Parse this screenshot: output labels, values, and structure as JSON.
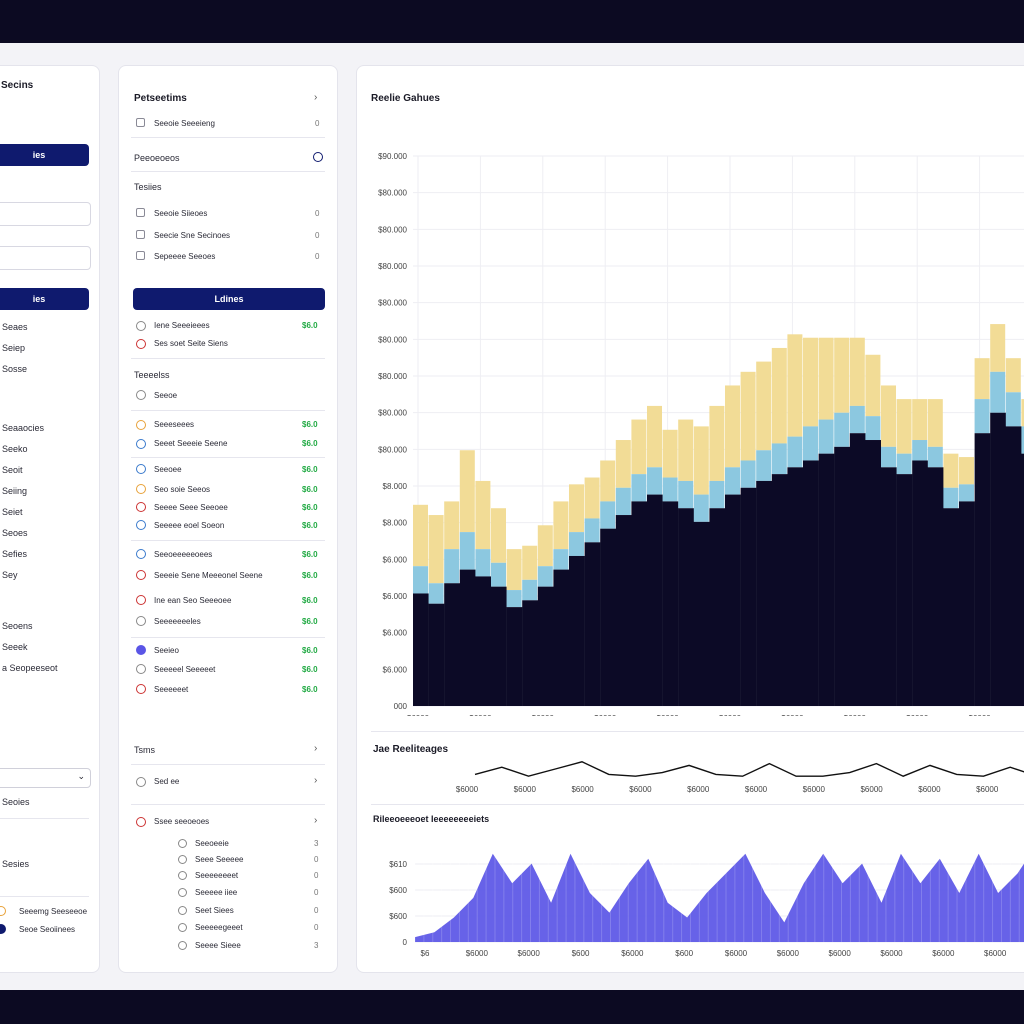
{
  "colors": {
    "accent": "#0f1a6e",
    "ok": "#22aa44",
    "error": "#cc3333",
    "band_top": "#f2dc96",
    "band_mid": "#8cc8e0",
    "band_base": "#0c0a26",
    "purple": "#5a55e6"
  },
  "left": {
    "title": "Secins",
    "btn1": "ies",
    "btn2": "ies",
    "items": [
      "Seaes",
      "Seiep",
      "Sosse"
    ],
    "section2": [
      "Seaaocies",
      "Seeko",
      "Seoit",
      "Seiing",
      "Seiet",
      "Seoes",
      "Sefies",
      "Sey"
    ],
    "section3": [
      "Seoens",
      "Seeek",
      "a Seopeeseot"
    ],
    "dropdown_value": "",
    "footer1": "Seoies",
    "footer2": "Sesies",
    "footer3": [
      "Seeemg Seeseeoe",
      "Seoe Seoiinees"
    ]
  },
  "mid": {
    "title": "Petseetims",
    "row1": "Seeoie Seeeieng",
    "row1_val": "0",
    "section1": "Peeoeoeos",
    "section2": "Tesiies",
    "checks": [
      {
        "label": "Seeoie Siieoes",
        "val": "0"
      },
      {
        "label": "Seecie Sne Secinoes",
        "val": "0"
      },
      {
        "label": "Sepeeee Seeoes",
        "val": "0"
      }
    ],
    "button": "Ldines",
    "list1": [
      {
        "label": "Iene Seeeieees",
        "val": "$6.0"
      },
      {
        "label": "Ses soet Seite Siens",
        "val": "$6.0"
      }
    ],
    "section3": "Teeeelss",
    "list2_head": "Seeoe",
    "list2": [
      {
        "label": "Seeeseees",
        "val": "$6.0"
      },
      {
        "label": "Seeet Seeeie Seene",
        "val": "$6.0"
      }
    ],
    "list3": [
      {
        "label": "Seeoee",
        "val": "$6.0"
      },
      {
        "label": "Seo soie Seeos",
        "val": "$6.0"
      },
      {
        "label": "Seeee Seee Seeoee",
        "val": "$6.0"
      },
      {
        "label": "Seeeee eoel Soeon",
        "val": "$6.0"
      }
    ],
    "list4": [
      {
        "label": "Seeoeeeeeoees",
        "val": "$6.0"
      },
      {
        "label": "Seeeie Sene Meeeonel Seene",
        "val": "$6.0"
      },
      {
        "label": "Ine ean Seo Seeeoee",
        "val": "$6.0"
      },
      {
        "label": "Seeeeeeeles",
        "val": "$6.0"
      }
    ],
    "list5": [
      {
        "label": "Seeieo",
        "val": "$6.0"
      },
      {
        "label": "Seeeeel Seeeeet",
        "val": "$6.0"
      },
      {
        "label": "Seeeeeet",
        "val": "$6.0"
      }
    ],
    "section4": "Tsms",
    "row_sel": "Sed ee",
    "section5": "Ssee seeoeoes",
    "sub": [
      {
        "label": "Seeoeeie",
        "val": "3"
      },
      {
        "label": "Seee Seeeee",
        "val": "0"
      },
      {
        "label": "Seeeeeeeet",
        "val": "0"
      },
      {
        "label": "Seeeee iiee",
        "val": "0"
      },
      {
        "label": "Seet Siees",
        "val": "0"
      },
      {
        "label": "Seeeeegeeet",
        "val": "0"
      },
      {
        "label": "Seeee Sieee",
        "val": "3"
      }
    ]
  },
  "main": {
    "title": "Reelie Gahues",
    "sub_title": "Jae Reeliteages",
    "bottom_title": "Rileeoeeeoet Ieeeeeeeeiets"
  },
  "chart_data": [
    {
      "type": "area",
      "title": "Reelie Gahues",
      "stacked": true,
      "y_tick_labels": [
        "$90.000",
        "$80.000",
        "$80.000",
        "$80.000",
        "$80.000",
        "$80.000",
        "$80.000",
        "$80.000",
        "$80.000",
        "$8.000",
        "$8.000",
        "$6.000",
        "$6.000",
        "$6.000",
        "$6.000",
        "000"
      ],
      "x_tick_labels": [
        "$6000",
        "$6000",
        "$6000",
        "$6000",
        "$6000",
        "$6000",
        "$6000",
        "$6000",
        "$6000",
        "$6000"
      ],
      "grid": true,
      "series": [
        {
          "values": [
            0.33,
            0.3,
            0.36,
            0.4,
            0.38,
            0.35,
            0.29,
            0.31,
            0.35,
            0.4,
            0.44,
            0.48,
            0.52,
            0.56,
            0.6,
            0.62,
            0.6,
            0.58,
            0.54,
            0.58,
            0.62,
            0.64,
            0.66,
            0.68,
            0.7,
            0.72,
            0.74,
            0.76,
            0.8,
            0.78,
            0.7,
            0.68,
            0.72,
            0.7,
            0.58,
            0.6,
            0.8,
            0.86,
            0.82,
            0.74
          ]
        },
        {
          "values": [
            0.08,
            0.06,
            0.1,
            0.11,
            0.08,
            0.07,
            0.05,
            0.06,
            0.06,
            0.06,
            0.07,
            0.07,
            0.08,
            0.08,
            0.08,
            0.08,
            0.07,
            0.08,
            0.08,
            0.08,
            0.08,
            0.08,
            0.09,
            0.09,
            0.09,
            0.1,
            0.1,
            0.1,
            0.08,
            0.07,
            0.06,
            0.06,
            0.06,
            0.06,
            0.06,
            0.05,
            0.1,
            0.12,
            0.1,
            0.08
          ]
        },
        {
          "values": [
            0.18,
            0.2,
            0.14,
            0.24,
            0.2,
            0.16,
            0.12,
            0.1,
            0.12,
            0.14,
            0.14,
            0.12,
            0.12,
            0.14,
            0.16,
            0.18,
            0.14,
            0.18,
            0.2,
            0.22,
            0.24,
            0.26,
            0.26,
            0.28,
            0.3,
            0.26,
            0.24,
            0.22,
            0.2,
            0.18,
            0.18,
            0.16,
            0.12,
            0.14,
            0.1,
            0.08,
            0.12,
            0.14,
            0.1,
            0.08
          ]
        }
      ]
    },
    {
      "type": "line",
      "title": "Jae Reeliteages",
      "x_tick_labels": [
        "$6000",
        "$6000",
        "$6000",
        "$6000",
        "$6000",
        "$6000",
        "$6000",
        "$6000",
        "$6000",
        "$6000"
      ],
      "values": [
        0.2,
        0.6,
        0.1,
        0.5,
        0.9,
        0.2,
        0.1,
        0.3,
        0.7,
        0.2,
        0.1,
        0.8,
        0.1,
        0.1,
        0.3,
        0.8,
        0.1,
        0.7,
        0.2,
        0.1,
        0.6,
        0.1
      ]
    },
    {
      "type": "area",
      "title": "Rileeoeeeoet Ieeeeeeeeiets",
      "y_tick_labels": [
        "$610",
        "$600",
        "$600",
        "0"
      ],
      "x_tick_labels": [
        "$6",
        "$6000",
        "$6000",
        "$600",
        "$6000",
        "$600",
        "$6000",
        "$6000",
        "$6000",
        "$6000",
        "$6000",
        "$6000"
      ],
      "values": [
        0.05,
        0.1,
        0.25,
        0.45,
        0.9,
        0.6,
        0.8,
        0.4,
        0.9,
        0.5,
        0.3,
        0.6,
        0.85,
        0.4,
        0.25,
        0.5,
        0.7,
        0.9,
        0.5,
        0.2,
        0.6,
        0.9,
        0.6,
        0.8,
        0.4,
        0.9,
        0.6,
        0.85,
        0.5,
        0.9,
        0.5,
        0.7,
        1.0
      ]
    }
  ]
}
